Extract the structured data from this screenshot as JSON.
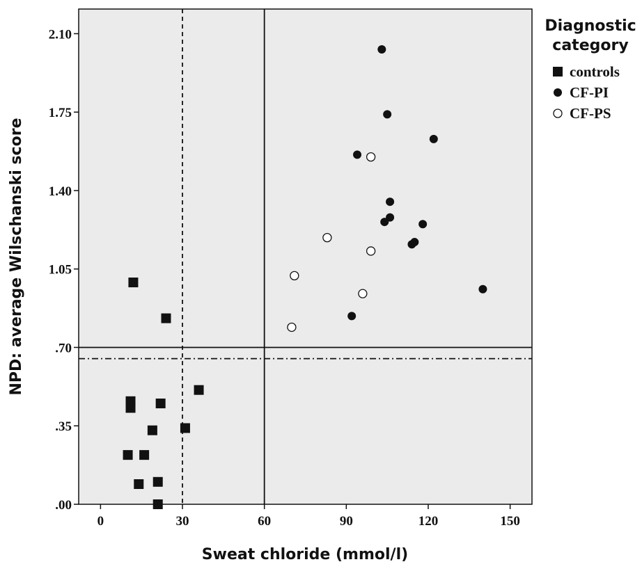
{
  "chart_data": {
    "type": "scatter",
    "xlabel": "Sweat chloride (mmol/l)",
    "ylabel": "NPD: average Wilschanski score",
    "xlim": [
      -8,
      158
    ],
    "ylim": [
      0,
      2.21
    ],
    "xticks": [
      0,
      30,
      60,
      90,
      120,
      150
    ],
    "xtick_labels": [
      "0",
      "30",
      "60",
      "90",
      "120",
      "150"
    ],
    "yticks": [
      0,
      0.35,
      0.7,
      1.05,
      1.4,
      1.75,
      2.1
    ],
    "ytick_labels": [
      ".00",
      ".35",
      ".70",
      "1.05",
      "1.40",
      "1.75",
      "2.10"
    ],
    "reference_lines": [
      {
        "axis": "x",
        "value": 30,
        "style": "dashed"
      },
      {
        "axis": "x",
        "value": 60,
        "style": "solid"
      },
      {
        "axis": "y",
        "value": 0.7,
        "style": "solid"
      },
      {
        "axis": "y",
        "value": 0.65,
        "style": "dash-dot"
      }
    ],
    "legend": {
      "title": "Diagnostic category",
      "position": "right",
      "entries": [
        {
          "label": "controls",
          "marker": "square-filled"
        },
        {
          "label": "CF-PI",
          "marker": "circle-filled"
        },
        {
          "label": "CF-PS",
          "marker": "circle-open"
        }
      ]
    },
    "series": [
      {
        "name": "controls",
        "marker": "square-filled",
        "points": [
          [
            12,
            0.99
          ],
          [
            24,
            0.83
          ],
          [
            36,
            0.51
          ],
          [
            11,
            0.46
          ],
          [
            22,
            0.45
          ],
          [
            11,
            0.43
          ],
          [
            31,
            0.34
          ],
          [
            19,
            0.33
          ],
          [
            10,
            0.22
          ],
          [
            16,
            0.22
          ],
          [
            21,
            0.1
          ],
          [
            14,
            0.09
          ],
          [
            21,
            0.0
          ]
        ]
      },
      {
        "name": "CF-PI",
        "marker": "circle-filled",
        "points": [
          [
            103,
            2.03
          ],
          [
            105,
            1.74
          ],
          [
            122,
            1.63
          ],
          [
            94,
            1.56
          ],
          [
            106,
            1.35
          ],
          [
            106,
            1.28
          ],
          [
            104,
            1.26
          ],
          [
            118,
            1.25
          ],
          [
            115,
            1.17
          ],
          [
            114,
            1.16
          ],
          [
            140,
            0.96
          ],
          [
            92,
            0.84
          ]
        ]
      },
      {
        "name": "CF-PS",
        "marker": "circle-open",
        "points": [
          [
            99,
            1.55
          ],
          [
            83,
            1.19
          ],
          [
            99,
            1.13
          ],
          [
            71,
            1.02
          ],
          [
            96,
            0.94
          ],
          [
            70,
            0.79
          ]
        ]
      }
    ]
  }
}
